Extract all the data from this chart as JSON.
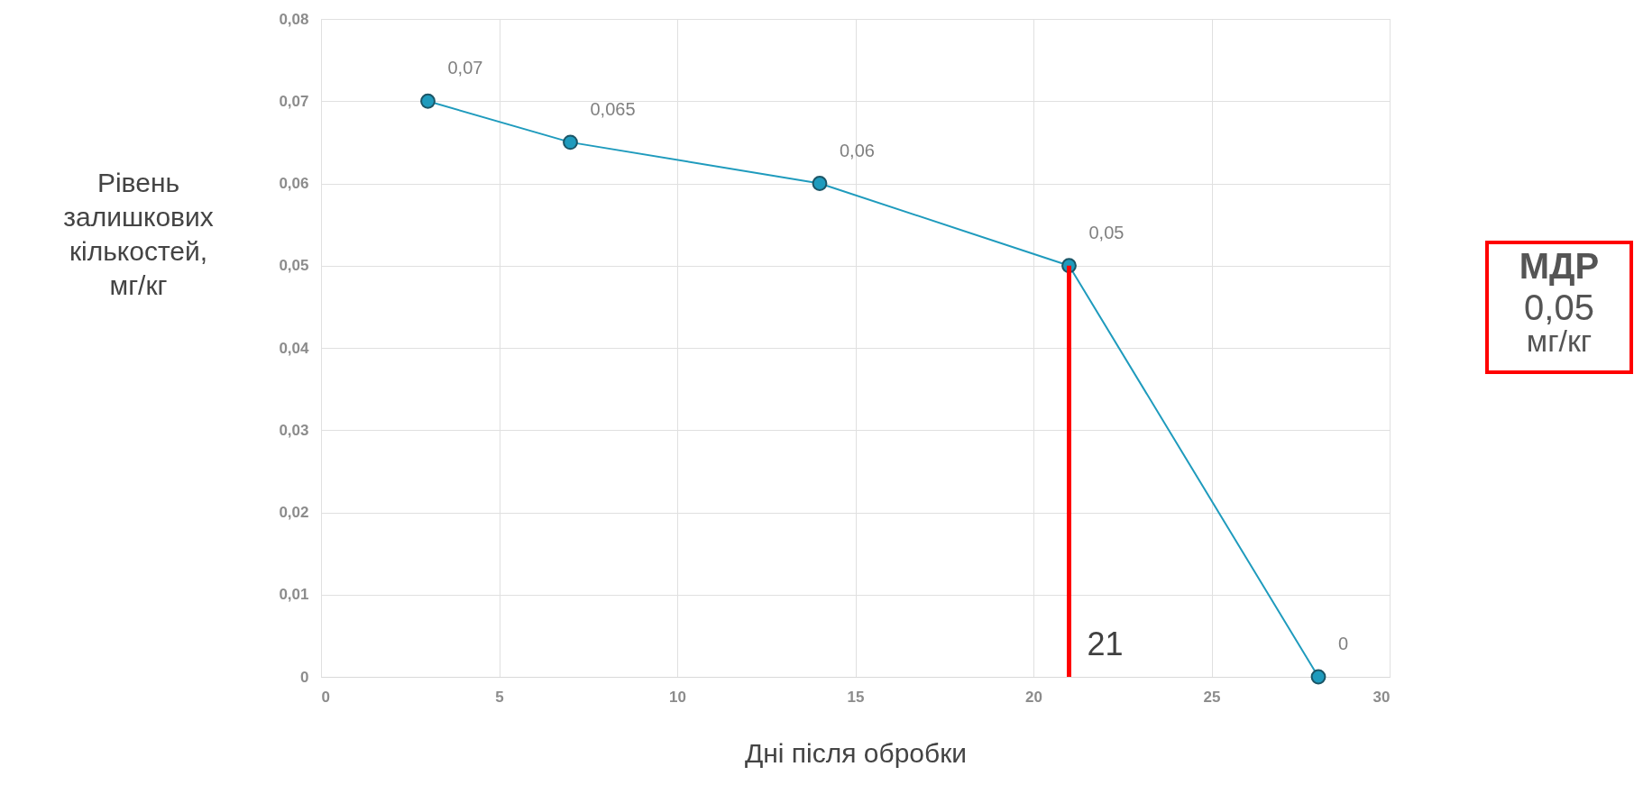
{
  "chart_data": {
    "type": "line",
    "xlabel": "Дні після обробки",
    "ylabel": "Рівень залишкових кількостей, мг/кг",
    "x": [
      3,
      7,
      14,
      21,
      28
    ],
    "series": [
      {
        "color": "#1f9bbd",
        "values": [
          0.07,
          0.065,
          0.06,
          0.05,
          0
        ],
        "value_labels": [
          "0,07",
          "0,065",
          "0,06",
          "0,05",
          "0"
        ]
      }
    ],
    "xlim": [
      0,
      30
    ],
    "xticks": [
      0,
      5,
      10,
      15,
      20,
      25,
      30
    ],
    "ylim": [
      0,
      0.08
    ],
    "yticks": [
      0,
      {
        "value": 0.01,
        "label": "0,01"
      },
      {
        "value": 0.02,
        "label": "0,02"
      },
      {
        "value": 0.03,
        "label": "0,03"
      },
      {
        "value": 0.04,
        "label": "0,04"
      },
      {
        "value": 0.05,
        "label": "0,05"
      },
      {
        "value": 0.06,
        "label": "0,06"
      },
      {
        "value": 0.07,
        "label": "0,07"
      },
      {
        "value": 0.08,
        "label": "0,08"
      }
    ],
    "ref_lines": [
      {
        "axis": "x",
        "value": 21,
        "label": "21",
        "color": "#ff0000"
      }
    ],
    "annotations": [
      "МДР\n0,05\nмг/кг"
    ],
    "grid": true,
    "marker": "circle",
    "line_style": "solid"
  }
}
